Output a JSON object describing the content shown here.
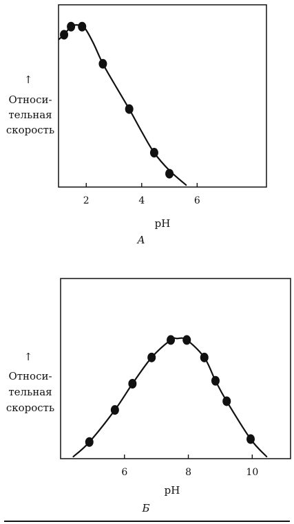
{
  "chart_data": [
    {
      "type": "line",
      "panel_label": "А",
      "xlabel": "pH",
      "ylabel_lines": [
        "Относи-",
        "тельная",
        "скорость"
      ],
      "ylabel_arrow": "↑",
      "xlim": [
        1,
        8.5
      ],
      "ylim": [
        0,
        100
      ],
      "x_ticks": [
        2,
        4,
        6
      ],
      "x_tick_labels": [
        "2",
        "4",
        "6"
      ],
      "points": {
        "x": [
          1.2,
          1.45,
          1.85,
          2.6,
          3.55,
          4.45,
          5.0
        ],
        "y": [
          90,
          95,
          95,
          72,
          44,
          17,
          4
        ]
      },
      "curve": {
        "x": [
          1.0,
          1.2,
          1.45,
          1.7,
          1.95,
          2.25,
          2.6,
          3.0,
          3.55,
          4.0,
          4.45,
          5.0,
          5.6
        ],
        "y": [
          87,
          90,
          95,
          96,
          94,
          85,
          72,
          60,
          44,
          30,
          17,
          6,
          -3
        ]
      }
    },
    {
      "type": "line",
      "panel_label": "Б",
      "xlabel": "pH",
      "ylabel_lines": [
        "Относи-",
        "тельная",
        "скорость"
      ],
      "ylabel_arrow": "↑",
      "xlim": [
        4,
        11.2
      ],
      "ylim": [
        0,
        100
      ],
      "x_ticks": [
        6,
        8,
        10
      ],
      "x_tick_labels": [
        "6",
        "8",
        "10"
      ],
      "points": {
        "x": [
          4.9,
          5.7,
          6.25,
          6.85,
          7.45,
          7.95,
          8.5,
          8.85,
          9.2,
          9.95
        ],
        "y": [
          10,
          32,
          50,
          68,
          80,
          80,
          68,
          52,
          38,
          12
        ]
      },
      "curve": {
        "x": [
          4.4,
          4.9,
          5.7,
          6.25,
          6.85,
          7.45,
          7.65,
          7.95,
          8.5,
          8.85,
          9.2,
          9.95,
          10.45
        ],
        "y": [
          0,
          10,
          32,
          50,
          68,
          80,
          81,
          80,
          68,
          52,
          38,
          12,
          0
        ]
      }
    }
  ]
}
